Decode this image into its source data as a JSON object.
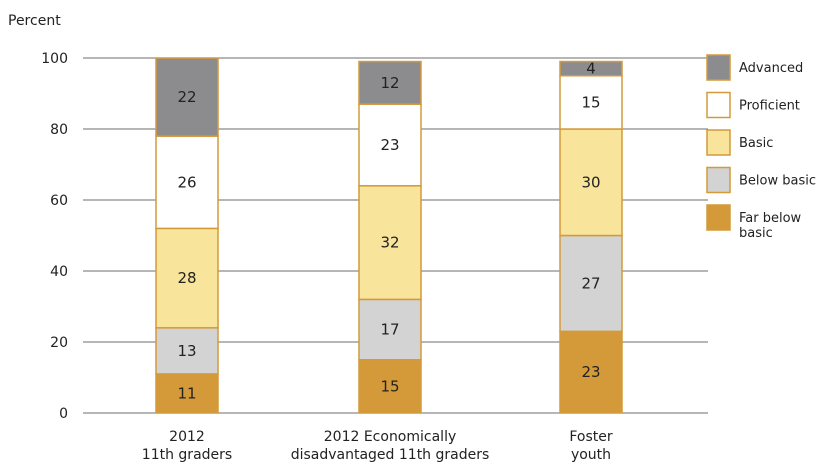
{
  "chart_data": {
    "type": "bar",
    "stacked": true,
    "title": "",
    "ylabel": "Percent",
    "xlabel": "",
    "ylim": [
      0,
      100
    ],
    "yticks": [
      0,
      20,
      40,
      60,
      80,
      100
    ],
    "grid": true,
    "legend_position": "right",
    "categories": [
      [
        "2012",
        "11th graders"
      ],
      [
        "2012 Economically",
        "disadvantaged 11th graders"
      ],
      [
        "Foster",
        "youth"
      ]
    ],
    "series": [
      {
        "name": "Far below basic",
        "legend_lines": [
          "Far below",
          "basic"
        ],
        "color": "#d49a3a",
        "values": [
          11,
          15,
          23
        ]
      },
      {
        "name": "Below basic",
        "legend_lines": [
          "Below basic"
        ],
        "color": "#d3d3d3",
        "values": [
          13,
          17,
          27
        ]
      },
      {
        "name": "Basic",
        "legend_lines": [
          "Basic"
        ],
        "color": "#f8e49a",
        "values": [
          28,
          32,
          30
        ]
      },
      {
        "name": "Proficient",
        "legend_lines": [
          "Proficient"
        ],
        "color": "#ffffff",
        "values": [
          26,
          23,
          15
        ]
      },
      {
        "name": "Advanced",
        "legend_lines": [
          "Advanced"
        ],
        "color": "#8c8c8e",
        "values": [
          22,
          12,
          4
        ]
      }
    ]
  }
}
